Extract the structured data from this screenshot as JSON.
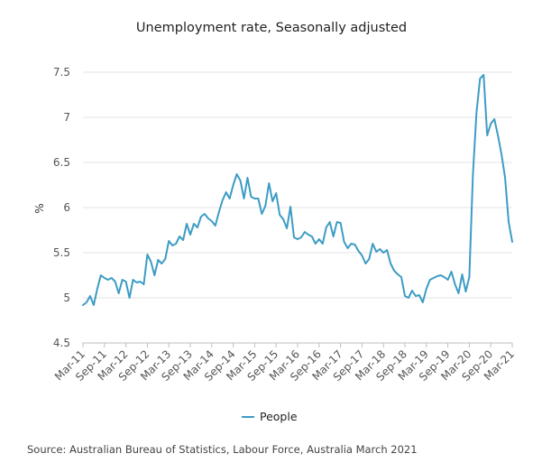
{
  "chart_data": {
    "type": "line",
    "title": "Unemployment rate, Seasonally adjusted",
    "ylabel": "%",
    "xlabel": "",
    "ylim": [
      4.5,
      7.5
    ],
    "yticks": [
      4.5,
      5,
      5.5,
      6,
      6.5,
      7,
      7.5
    ],
    "ytick_labels": [
      "4.5",
      "5",
      "5.5",
      "6",
      "6.5",
      "7",
      "7.5"
    ],
    "x_tick_labels": [
      "Mar-11",
      "Sep-11",
      "Mar-12",
      "Sep-12",
      "Mar-13",
      "Sep-13",
      "Mar-14",
      "Sep-14",
      "Mar-15",
      "Sep-15",
      "Mar-16",
      "Sep-16",
      "Mar-17",
      "Sep-17",
      "Mar-18",
      "Sep-18",
      "Mar-19",
      "Sep-19",
      "Mar-20",
      "Sep-20",
      "Mar-21"
    ],
    "grid": "horizontal",
    "legend": "bottom-center",
    "series": [
      {
        "name": "People",
        "color": "#3d9cc4",
        "start": "Mar-11",
        "end": "Mar-21",
        "frequency": "monthly",
        "values": [
          4.92,
          4.95,
          5.02,
          4.92,
          5.1,
          5.25,
          5.22,
          5.2,
          5.22,
          5.18,
          5.05,
          5.2,
          5.18,
          5.0,
          5.2,
          5.17,
          5.18,
          5.15,
          5.48,
          5.4,
          5.25,
          5.42,
          5.38,
          5.43,
          5.63,
          5.58,
          5.6,
          5.68,
          5.64,
          5.82,
          5.7,
          5.82,
          5.78,
          5.9,
          5.93,
          5.88,
          5.85,
          5.8,
          5.95,
          6.08,
          6.17,
          6.1,
          6.25,
          6.37,
          6.3,
          6.1,
          6.33,
          6.12,
          6.1,
          6.1,
          5.93,
          6.02,
          6.27,
          6.07,
          6.16,
          5.92,
          5.87,
          5.77,
          6.01,
          5.67,
          5.65,
          5.67,
          5.73,
          5.7,
          5.68,
          5.6,
          5.65,
          5.6,
          5.78,
          5.84,
          5.68,
          5.84,
          5.83,
          5.62,
          5.55,
          5.6,
          5.59,
          5.52,
          5.47,
          5.38,
          5.43,
          5.6,
          5.51,
          5.54,
          5.5,
          5.53,
          5.38,
          5.3,
          5.26,
          5.23,
          5.02,
          5.0,
          5.08,
          5.02,
          5.03,
          4.95,
          5.1,
          5.2,
          5.22,
          5.24,
          5.25,
          5.23,
          5.2,
          5.29,
          5.15,
          5.05,
          5.26,
          5.07,
          5.23,
          6.36,
          7.05,
          7.43,
          7.47,
          6.8,
          6.93,
          6.98,
          6.8,
          6.59,
          6.33,
          5.84,
          5.62
        ]
      }
    ],
    "source": "Source: Australian Bureau of Statistics, Labour Force, Australia March 2021"
  }
}
